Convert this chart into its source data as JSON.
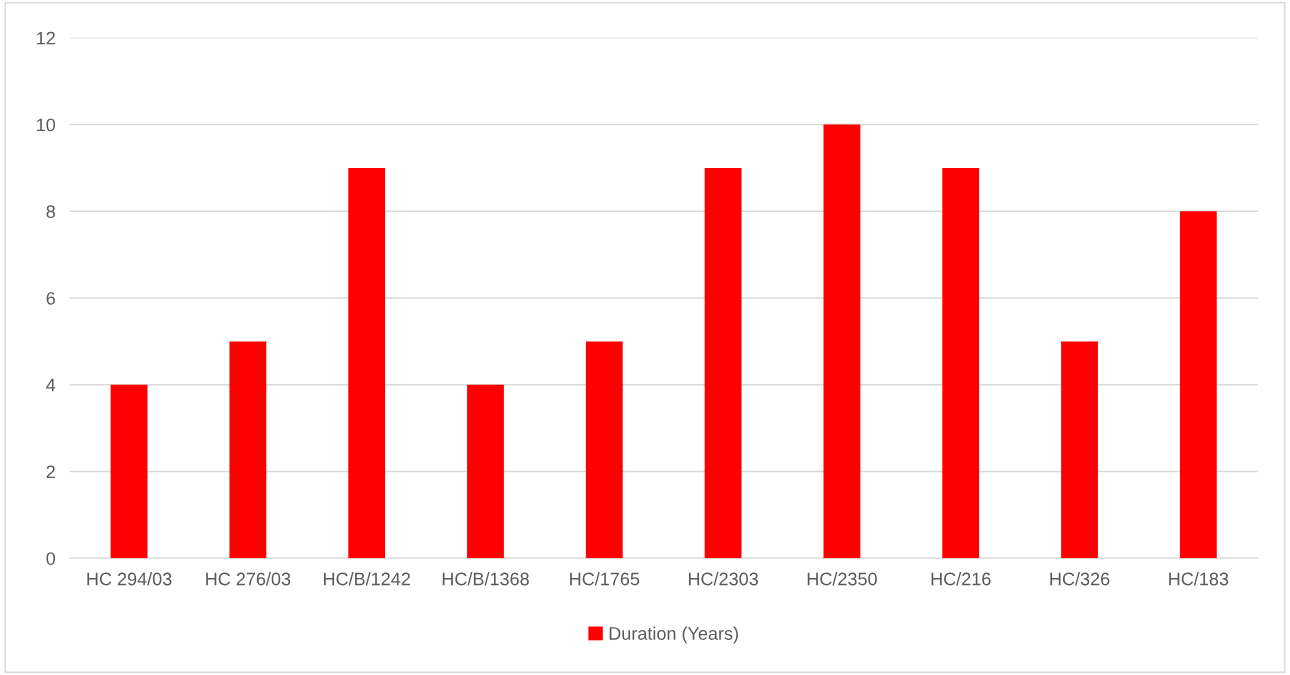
{
  "chart_data": {
    "type": "bar",
    "categories": [
      "HC 294/03",
      "HC 276/03",
      "HC/B/1242",
      "HC/B/1368",
      "HC/1765",
      "HC/2303",
      "HC/2350",
      "HC/216",
      "HC/326",
      "HC/183"
    ],
    "series": [
      {
        "name": "Duration (Years)",
        "color": "#ff0000",
        "values": [
          4,
          5,
          9,
          4,
          5,
          9,
          10,
          9,
          5,
          8
        ]
      }
    ],
    "ylim": [
      0,
      12
    ],
    "yticks": [
      0,
      2,
      4,
      6,
      8,
      10,
      12
    ],
    "grid": "y",
    "legend": "bottom"
  }
}
